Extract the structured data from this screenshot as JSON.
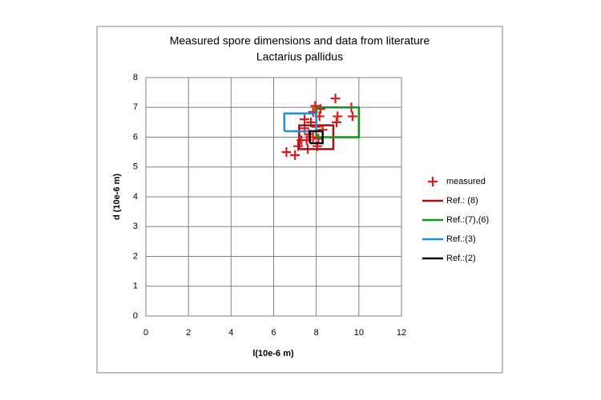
{
  "chart_data": {
    "type": "scatter",
    "title": "Measured spore dimensions and data from literature",
    "subtitle": "Lactarius pallidus",
    "x_label": "l(10e-6 m)",
    "y_label": "d (10e-6 m)",
    "xlim": [
      0,
      12
    ],
    "xticks": [
      0,
      2,
      4,
      6,
      8,
      10,
      12
    ],
    "ylim": [
      0,
      8
    ],
    "yticks": [
      0,
      1,
      2,
      3,
      4,
      5,
      6,
      7,
      8
    ],
    "grid": true,
    "legend": "right",
    "series": [
      {
        "name": "measured",
        "color": "#e31a1c",
        "mode": "markers",
        "x": [
          6.6,
          7.0,
          7.15,
          7.2,
          7.45,
          7.55,
          7.6,
          7.65,
          7.75,
          7.85,
          7.95,
          8.0,
          8.1,
          8.15,
          8.2,
          8.05,
          8.3,
          7.85,
          7.45,
          8.9,
          9.0,
          8.95,
          9.65,
          9.7,
          7.3
        ],
        "values": [
          5.5,
          5.4,
          5.7,
          6.2,
          6.3,
          5.9,
          5.6,
          6.1,
          6.5,
          6.85,
          7.05,
          6.35,
          5.95,
          6.7,
          6.95,
          5.7,
          6.25,
          6.0,
          6.6,
          7.3,
          6.7,
          6.5,
          7.0,
          6.7,
          5.9
        ]
      },
      {
        "name": "Ref.: (8)",
        "color": "#a50f15",
        "mode": "lines",
        "x": [
          7.2,
          8.8,
          8.8,
          7.2,
          7.2
        ],
        "values": [
          5.6,
          5.6,
          6.4,
          6.4,
          5.6
        ]
      },
      {
        "name": "Ref.:(7),(6)",
        "color": "#1a8f1a",
        "mode": "lines",
        "x": [
          8,
          10,
          10,
          8,
          8
        ],
        "values": [
          6,
          6,
          7,
          7,
          6
        ]
      },
      {
        "name": "Ref.:(3)",
        "color": "#1f8fdf",
        "mode": "lines",
        "x": [
          6.5,
          8,
          8,
          6.5,
          6.5
        ],
        "values": [
          6.2,
          6.2,
          6.8,
          6.8,
          6.2
        ]
      },
      {
        "name": "Ref.:(2)",
        "color": "#000000",
        "mode": "lines",
        "x": [
          7.7,
          8.3,
          8.3,
          7.7,
          7.7
        ],
        "values": [
          5.8,
          5.8,
          6.2,
          6.2,
          5.8
        ]
      }
    ]
  }
}
